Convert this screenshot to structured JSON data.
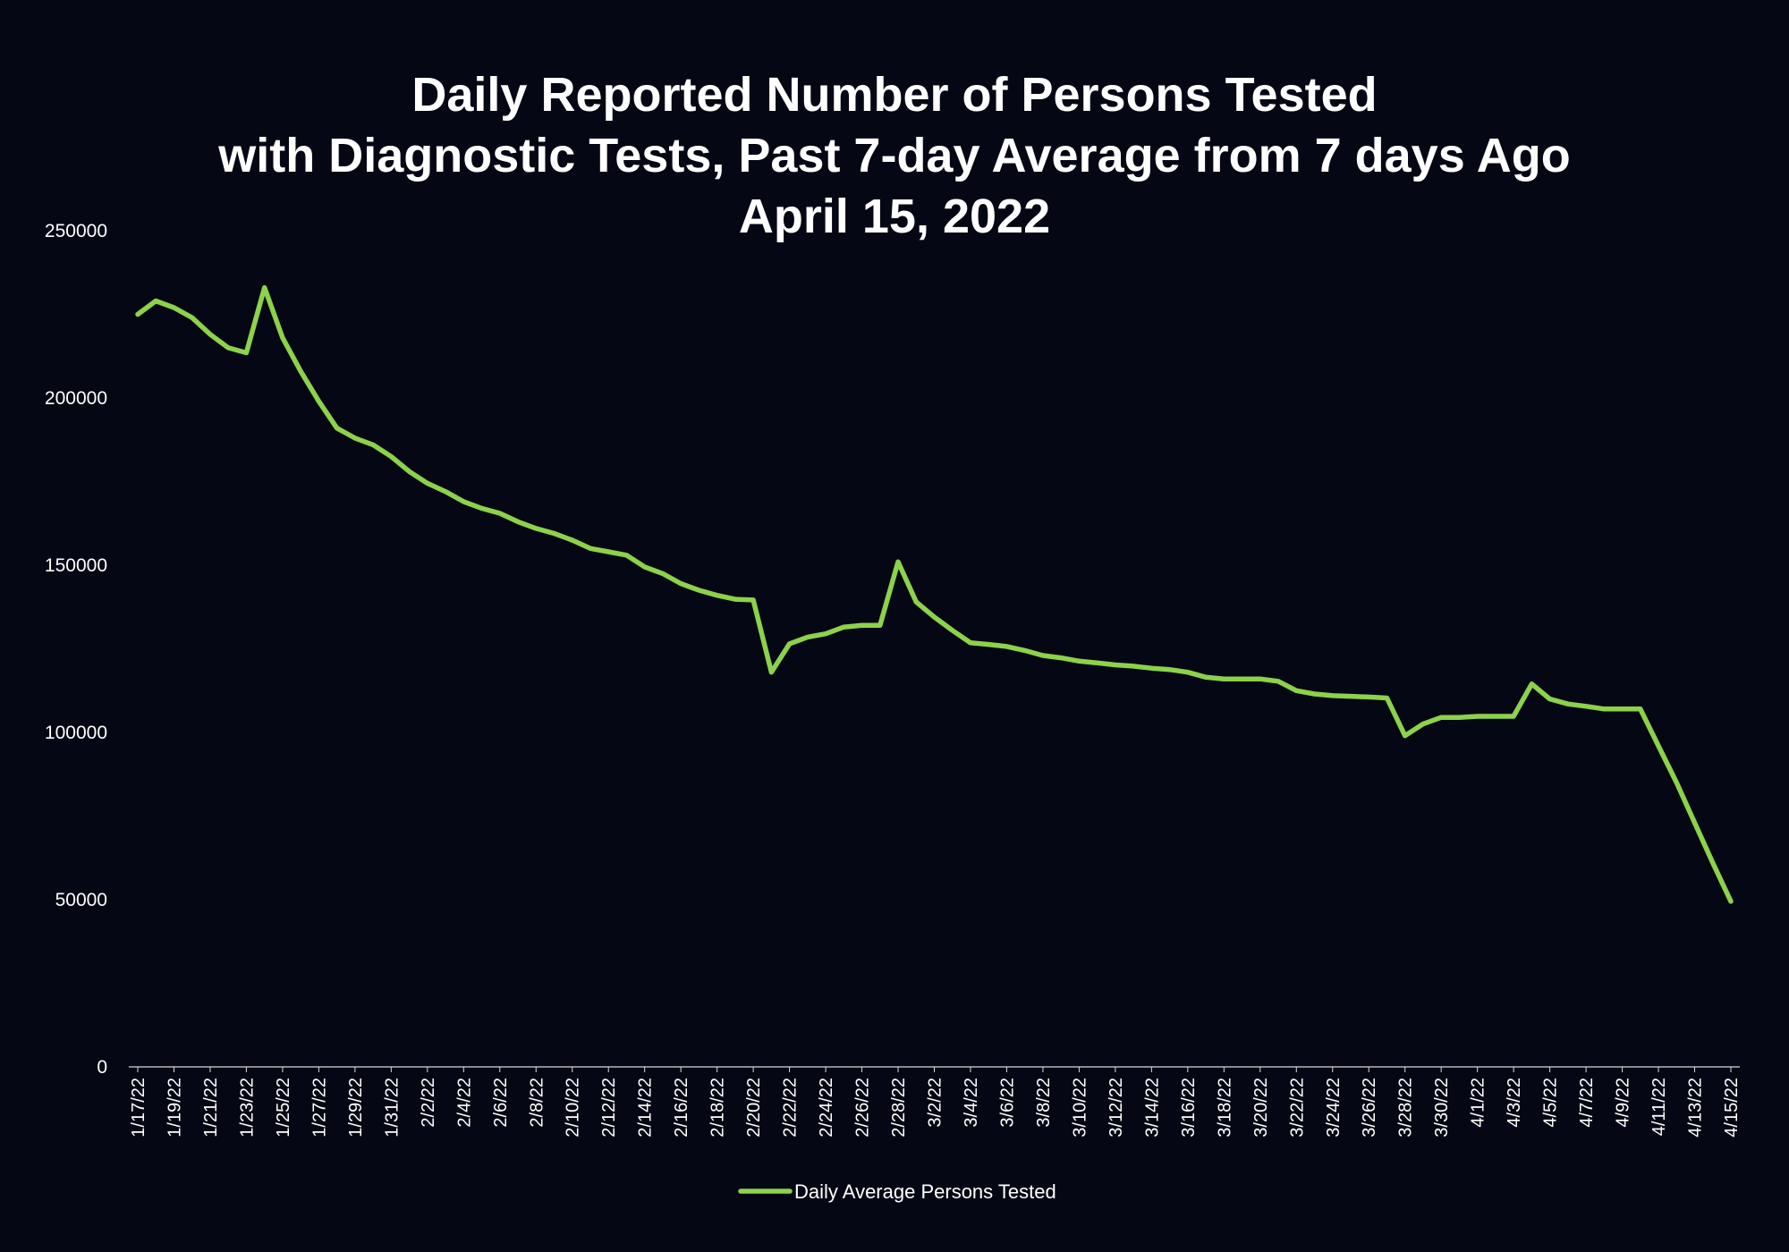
{
  "chart_data": {
    "type": "line",
    "title_lines": [
      "Daily Reported Number of Persons Tested",
      "with Diagnostic Tests, Past 7-day Average from 7 days Ago",
      "April 15, 2022"
    ],
    "xlabel": "",
    "ylabel": "",
    "ylim": [
      0,
      250000
    ],
    "y_ticks": [
      0,
      50000,
      100000,
      150000,
      200000,
      250000
    ],
    "y_tick_labels": [
      "0",
      "50000",
      "100000",
      "150000",
      "200000",
      "250000"
    ],
    "grid": false,
    "legend_position": "bottom",
    "line_color": "#8cd24a",
    "x_tick_labels": [
      "1/17/22",
      "1/19/22",
      "1/21/22",
      "1/23/22",
      "1/25/22",
      "1/27/22",
      "1/29/22",
      "1/31/22",
      "2/2/22",
      "2/4/22",
      "2/6/22",
      "2/8/22",
      "2/10/22",
      "2/12/22",
      "2/14/22",
      "2/16/22",
      "2/18/22",
      "2/20/22",
      "2/22/22",
      "2/24/22",
      "2/26/22",
      "2/28/22",
      "3/2/22",
      "3/4/22",
      "3/6/22",
      "3/8/22",
      "3/10/22",
      "3/12/22",
      "3/14/22",
      "3/16/22",
      "3/18/22",
      "3/20/22",
      "3/22/22",
      "3/24/22",
      "3/26/22",
      "3/28/22",
      "3/30/22",
      "4/1/22",
      "4/3/22",
      "4/5/22",
      "4/7/22",
      "4/9/22",
      "4/11/22",
      "4/13/22",
      "4/15/22"
    ],
    "series": [
      {
        "name": "Daily Average Persons Tested",
        "x": [
          "1/17/22",
          "1/18/22",
          "1/19/22",
          "1/20/22",
          "1/21/22",
          "1/22/22",
          "1/23/22",
          "1/24/22",
          "1/25/22",
          "1/26/22",
          "1/27/22",
          "1/28/22",
          "1/29/22",
          "1/30/22",
          "1/31/22",
          "2/1/22",
          "2/2/22",
          "2/3/22",
          "2/4/22",
          "2/5/22",
          "2/6/22",
          "2/7/22",
          "2/8/22",
          "2/9/22",
          "2/10/22",
          "2/11/22",
          "2/12/22",
          "2/13/22",
          "2/14/22",
          "2/15/22",
          "2/16/22",
          "2/17/22",
          "2/18/22",
          "2/19/22",
          "2/20/22",
          "2/21/22",
          "2/22/22",
          "2/23/22",
          "2/24/22",
          "2/25/22",
          "2/26/22",
          "2/27/22",
          "2/28/22",
          "3/1/22",
          "3/2/22",
          "3/3/22",
          "3/4/22",
          "3/5/22",
          "3/6/22",
          "3/7/22",
          "3/8/22",
          "3/9/22",
          "3/10/22",
          "3/11/22",
          "3/12/22",
          "3/13/22",
          "3/14/22",
          "3/15/22",
          "3/16/22",
          "3/17/22",
          "3/18/22",
          "3/19/22",
          "3/20/22",
          "3/21/22",
          "3/22/22",
          "3/23/22",
          "3/24/22",
          "3/25/22",
          "3/26/22",
          "3/27/22",
          "3/28/22",
          "3/29/22",
          "3/30/22",
          "3/31/22",
          "4/1/22",
          "4/2/22",
          "4/3/22",
          "4/4/22",
          "4/5/22",
          "4/6/22",
          "4/7/22",
          "4/8/22",
          "4/9/22",
          "4/10/22",
          "4/11/22",
          "4/12/22",
          "4/13/22",
          "4/14/22",
          "4/15/22"
        ],
        "values": [
          225000,
          229000,
          227000,
          224000,
          219000,
          215000,
          213500,
          233000,
          218000,
          208000,
          199000,
          191000,
          188000,
          186000,
          182500,
          178000,
          174500,
          172000,
          169000,
          167000,
          165500,
          163000,
          161000,
          159500,
          157500,
          155000,
          154000,
          153000,
          149500,
          147500,
          144500,
          142500,
          141000,
          139800,
          139600,
          118000,
          126500,
          128500,
          129500,
          131500,
          132000,
          132000,
          151000,
          139000,
          134500,
          130500,
          126800,
          126300,
          125700,
          124500,
          123000,
          122300,
          121300,
          120800,
          120200,
          119800,
          119200,
          118800,
          118000,
          116500,
          116000,
          116000,
          116000,
          115300,
          112500,
          111500,
          111000,
          110800,
          110600,
          110300,
          99000,
          102500,
          104500,
          104500,
          104800,
          104800,
          104800,
          114500,
          110000,
          108500,
          107800,
          107000,
          107000,
          107000,
          96000,
          85000,
          73000,
          61000,
          49500
        ]
      }
    ]
  }
}
